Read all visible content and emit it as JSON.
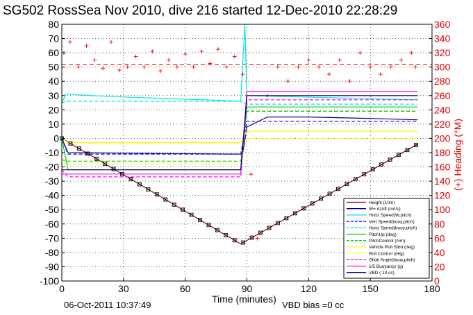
{
  "chart_data": {
    "type": "line",
    "title": "SG502 RossSea Nov 2010, dive 216 started 12-Dec-2010 22:28:29",
    "xlabel": "Time (minutes)",
    "ylabel_right": "(+) Heading (°M)",
    "xlim": [
      0,
      180
    ],
    "ylim": [
      -100,
      80
    ],
    "ylim_right": [
      0,
      360
    ],
    "xticks": [
      0,
      30,
      60,
      90,
      120,
      150,
      180
    ],
    "yticks": [
      80,
      70,
      60,
      50,
      40,
      30,
      20,
      10,
      0,
      -10,
      -20,
      -30,
      -40,
      -50,
      -60,
      -70,
      -80,
      -90,
      -100
    ],
    "yticks_right": [
      360,
      340,
      320,
      300,
      280,
      260,
      240,
      220,
      200,
      180,
      160,
      140,
      120,
      100,
      80,
      60,
      40,
      20,
      0
    ],
    "grid": true,
    "legend_position": "bottom-right",
    "footer_date": "06-Oct-2011 10:37:49",
    "footer_vbd": "VBD bias =0 cc",
    "colors": {
      "height": "#8b0000",
      "w": "#00008b",
      "horz_speed": "#00e5e5",
      "vert_speed_buoy": "#0000ff",
      "horz_speed_buoy": "#00e5e5",
      "pitch_up": "#00cc00",
      "pitch_control": "#00cc00",
      "vehicle_roll": "#ffff00",
      "roll_control": "#ffff00",
      "glide_angle": "#ff00ff",
      "buoyancy": "#ff00ff",
      "vbd": "#000080",
      "heading": "#e00000"
    },
    "legend": [
      {
        "label": "Height (10m)",
        "color": "#8b0000",
        "dash": "solid"
      },
      {
        "label": "W= dz/dt (cm/s)",
        "color": "#00008b",
        "dash": "solid"
      },
      {
        "label": "Horiz Speed(W,pitch)",
        "color": "#00e5e5",
        "dash": "solid"
      },
      {
        "label": "Vert Speed(buoy,pitch)",
        "color": "#0000ff",
        "dash": "dashed"
      },
      {
        "label": "Horiz Speed(buoy,pitch)",
        "color": "#00e5e5",
        "dash": "dashed"
      },
      {
        "label": "PitchUp (deg)",
        "color": "#00cc00",
        "dash": "solid"
      },
      {
        "label": "PitchControl (mm)",
        "color": "#00cc00",
        "dash": "dashed"
      },
      {
        "label": "Vehicle Roll Stbd (deg)",
        "color": "#ffff00",
        "dash": "solid"
      },
      {
        "label": "Roll Control (deg)",
        "color": "#ffff00",
        "dash": "dashed"
      },
      {
        "label": "Glide Angle(buoy,pitch)",
        "color": "#ff00ff",
        "dash": "dashed"
      },
      {
        "label": "1/5 Buoyancy (g)",
        "color": "#ff00ff",
        "dash": "solid"
      },
      {
        "label": "VBD ( 10 cc)",
        "color": "#000080",
        "dash": "solid"
      }
    ],
    "series": [
      {
        "key": "height",
        "x": [
          0,
          87,
          173
        ],
        "y": [
          0,
          -74,
          -4
        ]
      },
      {
        "key": "w",
        "x": [
          0,
          3,
          87,
          88,
          90,
          100,
          120,
          150,
          173
        ],
        "y": [
          0,
          -10,
          -11,
          -10,
          8,
          15,
          15,
          14,
          13
        ]
      },
      {
        "key": "horz_speed",
        "x": [
          0,
          2,
          15,
          30,
          50,
          70,
          87,
          89,
          90,
          173
        ],
        "y": [
          25,
          31,
          30,
          29,
          28,
          27,
          26,
          80,
          30,
          27
        ]
      },
      {
        "key": "vert_speed_buoy",
        "x": [
          0,
          3,
          87,
          90,
          173
        ],
        "y": [
          0,
          -11,
          -11,
          12,
          12
        ]
      },
      {
        "key": "horz_speed_buoy",
        "x": [
          0,
          2,
          87,
          90,
          173
        ],
        "y": [
          25,
          26,
          26,
          24,
          24
        ]
      },
      {
        "key": "pitch_up",
        "x": [
          0,
          3,
          87,
          90,
          173
        ],
        "y": [
          0,
          -22,
          -22,
          22,
          22
        ]
      },
      {
        "key": "pitch_control",
        "x": [
          0,
          3,
          87,
          90,
          173
        ],
        "y": [
          -15,
          -16,
          -16,
          19,
          19
        ]
      },
      {
        "key": "vehicle_roll",
        "x": [
          0,
          3,
          87,
          90,
          173
        ],
        "y": [
          0,
          -3,
          -3,
          5,
          5
        ]
      },
      {
        "key": "roll_control",
        "x": [
          0,
          3,
          87,
          90,
          173
        ],
        "y": [
          -18,
          -18,
          -18,
          0,
          0
        ]
      },
      {
        "key": "glide_angle",
        "x": [
          0,
          3,
          87,
          90,
          173
        ],
        "y": [
          -22,
          -27,
          -27,
          27,
          27
        ]
      },
      {
        "key": "buoyancy",
        "x": [
          0,
          3,
          87,
          90,
          173
        ],
        "y": [
          -25,
          -25,
          -25,
          33,
          33
        ]
      },
      {
        "key": "vbd",
        "x": [
          0,
          3,
          87,
          90,
          173
        ],
        "y": [
          -22,
          -22,
          -22,
          30,
          30
        ]
      }
    ],
    "heading": {
      "target": 304,
      "x": [
        1,
        4,
        8,
        12,
        16,
        20,
        24,
        28,
        32,
        36,
        40,
        44,
        48,
        52,
        56,
        60,
        64,
        68,
        72,
        76,
        80,
        84,
        88,
        92,
        95,
        100,
        105,
        110,
        115,
        120,
        125,
        130,
        135,
        140,
        145,
        150,
        155,
        160,
        165,
        170,
        172
      ],
      "y": [
        320,
        335,
        300,
        330,
        310,
        298,
        335,
        296,
        300,
        315,
        300,
        322,
        295,
        310,
        300,
        318,
        300,
        322,
        305,
        325,
        300,
        315,
        290,
        150,
        60,
        260,
        300,
        280,
        300,
        310,
        300,
        290,
        310,
        280,
        320,
        300,
        290,
        300,
        310,
        320,
        300
      ]
    }
  }
}
